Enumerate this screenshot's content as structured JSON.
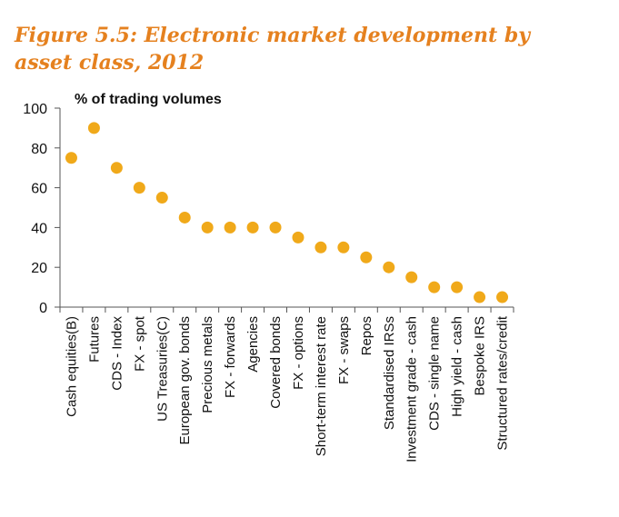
{
  "figure": {
    "title_line1": "Figure 5.5: Electronic market development by",
    "title_line2": "asset class, 2012"
  },
  "colors": {
    "title": "#e5811f",
    "marker": "#f0a91a",
    "axis": "#555555"
  },
  "chart_data": {
    "type": "scatter",
    "title": "Figure 5.5: Electronic market development by asset class, 2012",
    "ylabel": "% of trading volumes",
    "xlabel": "",
    "ylim": [
      0,
      100
    ],
    "yticks": [
      0,
      20,
      40,
      60,
      80,
      100
    ],
    "grid": false,
    "categories": [
      "Cash equities(B)",
      "Futures",
      "CDS - Index",
      "FX - spot",
      "US Treasuries(C)",
      "European gov. bonds",
      "Precious metals",
      "FX - forwards",
      "Agencies",
      "Covered bonds",
      "FX - options",
      "Short-term interest rate",
      "FX - swaps",
      "Repos",
      "Standardised IRSs",
      "Investment grade - cash",
      "CDS - single name",
      "High yield - cash",
      "Bespoke IRS",
      "Structured rates/credit"
    ],
    "values": [
      75,
      90,
      70,
      60,
      55,
      45,
      40,
      40,
      40,
      40,
      35,
      30,
      30,
      25,
      20,
      15,
      10,
      10,
      5,
      5
    ]
  }
}
